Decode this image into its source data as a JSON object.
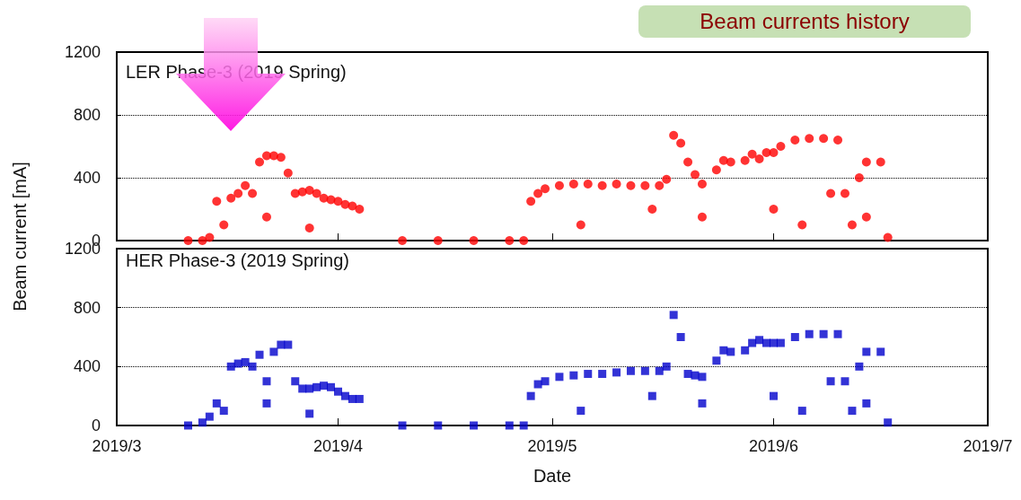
{
  "chart_data": [
    {
      "type": "scatter",
      "title": "Beam currents history",
      "ylabel": "Beam current [mA]",
      "annotations": [
        "LER Phase-3 (2019 Spring)"
      ],
      "series": [
        {
          "color": "#ff0000",
          "marker": "circle",
          "x": [
            "2019-03-11",
            "2019-03-13",
            "2019-03-14",
            "2019-03-15",
            "2019-03-16",
            "2019-03-17",
            "2019-03-18",
            "2019-03-19",
            "2019-03-20",
            "2019-03-21",
            "2019-03-22",
            "2019-03-22",
            "2019-03-23",
            "2019-03-24",
            "2019-03-25",
            "2019-03-26",
            "2019-03-27",
            "2019-03-28",
            "2019-03-28",
            "2019-03-29",
            "2019-03-30",
            "2019-03-31",
            "2019-04-01",
            "2019-04-02",
            "2019-04-03",
            "2019-04-04",
            "2019-04-10",
            "2019-04-15",
            "2019-04-20",
            "2019-04-25",
            "2019-04-27",
            "2019-04-28",
            "2019-04-29",
            "2019-04-30",
            "2019-05-02",
            "2019-05-04",
            "2019-05-05",
            "2019-05-06",
            "2019-05-08",
            "2019-05-10",
            "2019-05-12",
            "2019-05-14",
            "2019-05-15",
            "2019-05-16",
            "2019-05-17",
            "2019-05-18",
            "2019-05-19",
            "2019-05-20",
            "2019-05-21",
            "2019-05-22",
            "2019-05-22",
            "2019-05-24",
            "2019-05-25",
            "2019-05-26",
            "2019-05-28",
            "2019-05-29",
            "2019-05-30",
            "2019-05-31",
            "2019-06-01",
            "2019-06-01",
            "2019-06-02",
            "2019-06-04",
            "2019-06-05",
            "2019-06-06",
            "2019-06-08",
            "2019-06-09",
            "2019-06-10",
            "2019-06-11",
            "2019-06-12",
            "2019-06-13",
            "2019-06-14",
            "2019-06-14",
            "2019-06-16",
            "2019-06-17"
          ],
          "values": [
            0,
            0,
            20,
            250,
            100,
            270,
            300,
            350,
            300,
            500,
            540,
            150,
            540,
            530,
            430,
            300,
            310,
            320,
            80,
            300,
            270,
            260,
            250,
            230,
            220,
            200,
            0,
            0,
            0,
            0,
            0,
            250,
            300,
            330,
            350,
            360,
            100,
            360,
            350,
            360,
            350,
            350,
            200,
            350,
            390,
            670,
            620,
            500,
            420,
            360,
            150,
            450,
            510,
            500,
            510,
            550,
            520,
            560,
            560,
            200,
            600,
            640,
            100,
            650,
            650,
            300,
            640,
            300,
            100,
            400,
            500,
            150,
            500,
            20
          ]
        }
      ],
      "xlim": [
        "2019-03-01",
        "2019-07-01"
      ],
      "xticks": [
        {
          "value": "2019-03-01",
          "label": null
        },
        {
          "value": "2019-04-01",
          "label": null
        },
        {
          "value": "2019-05-01",
          "label": null
        },
        {
          "value": "2019-06-01",
          "label": null
        },
        {
          "value": "2019-07-01",
          "label": null
        }
      ],
      "ylim": [
        0,
        1200
      ],
      "yticks": [
        0,
        400,
        800,
        1200
      ],
      "grid": "y",
      "tick_labels": "y"
    },
    {
      "type": "scatter",
      "xlabel": "Date",
      "annotations": [
        "HER Phase-3 (2019 Spring)"
      ],
      "series": [
        {
          "color": "#0000cc",
          "marker": "square",
          "x": [
            "2019-03-11",
            "2019-03-13",
            "2019-03-14",
            "2019-03-15",
            "2019-03-16",
            "2019-03-17",
            "2019-03-18",
            "2019-03-19",
            "2019-03-20",
            "2019-03-21",
            "2019-03-22",
            "2019-03-22",
            "2019-03-23",
            "2019-03-24",
            "2019-03-25",
            "2019-03-26",
            "2019-03-27",
            "2019-03-28",
            "2019-03-28",
            "2019-03-29",
            "2019-03-30",
            "2019-03-31",
            "2019-04-01",
            "2019-04-02",
            "2019-04-03",
            "2019-04-04",
            "2019-04-10",
            "2019-04-15",
            "2019-04-20",
            "2019-04-25",
            "2019-04-27",
            "2019-04-28",
            "2019-04-29",
            "2019-04-30",
            "2019-05-02",
            "2019-05-04",
            "2019-05-05",
            "2019-05-06",
            "2019-05-08",
            "2019-05-10",
            "2019-05-12",
            "2019-05-14",
            "2019-05-15",
            "2019-05-16",
            "2019-05-17",
            "2019-05-18",
            "2019-05-19",
            "2019-05-20",
            "2019-05-21",
            "2019-05-22",
            "2019-05-22",
            "2019-05-24",
            "2019-05-25",
            "2019-05-26",
            "2019-05-28",
            "2019-05-29",
            "2019-05-30",
            "2019-05-31",
            "2019-06-01",
            "2019-06-01",
            "2019-06-02",
            "2019-06-04",
            "2019-06-05",
            "2019-06-06",
            "2019-06-08",
            "2019-06-09",
            "2019-06-10",
            "2019-06-11",
            "2019-06-12",
            "2019-06-13",
            "2019-06-14",
            "2019-06-14",
            "2019-06-16",
            "2019-06-17"
          ],
          "values": [
            0,
            20,
            60,
            150,
            100,
            400,
            420,
            430,
            400,
            480,
            300,
            150,
            500,
            548,
            548,
            300,
            250,
            250,
            80,
            260,
            270,
            260,
            230,
            200,
            180,
            180,
            0,
            0,
            0,
            0,
            0,
            200,
            280,
            300,
            330,
            340,
            100,
            350,
            350,
            360,
            370,
            370,
            200,
            370,
            400,
            750,
            600,
            350,
            340,
            330,
            150,
            440,
            510,
            500,
            510,
            560,
            580,
            560,
            560,
            200,
            560,
            600,
            100,
            620,
            620,
            300,
            620,
            300,
            100,
            400,
            500,
            150,
            500,
            20
          ]
        }
      ],
      "xlim": [
        "2019-03-01",
        "2019-07-01"
      ],
      "xticks": [
        {
          "value": "2019-03-01",
          "label": "2019/3"
        },
        {
          "value": "2019-04-01",
          "label": "2019/4"
        },
        {
          "value": "2019-05-01",
          "label": "2019/5"
        },
        {
          "value": "2019-06-01",
          "label": "2019/6"
        },
        {
          "value": "2019-07-01",
          "label": "2019/7"
        }
      ],
      "ylim": [
        0,
        1200
      ],
      "yticks": [
        0,
        400,
        800,
        1200
      ],
      "grid": "y"
    }
  ]
}
